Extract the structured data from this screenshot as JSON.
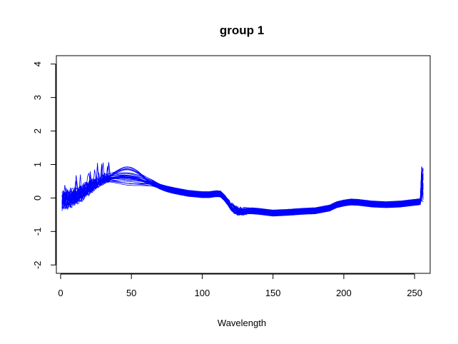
{
  "chart_data": {
    "type": "line",
    "title": "group 1",
    "xlabel": "Wavelength",
    "ylabel": "",
    "xlim": [
      -3,
      261
    ],
    "ylim": [
      -2.25,
      4.25
    ],
    "x_ticks": [
      0,
      50,
      100,
      150,
      200,
      250
    ],
    "y_ticks": [
      -2,
      -1,
      0,
      1,
      2,
      3,
      4
    ],
    "x_tick_labels": [
      "0",
      "50",
      "100",
      "150",
      "200",
      "250"
    ],
    "y_tick_labels": [
      "-2",
      "-1",
      "0",
      "1",
      "2",
      "3",
      "4"
    ],
    "grid": false,
    "legend": "none",
    "line_color": "#0000ff",
    "series_count": 28,
    "x_range": [
      1,
      256
    ],
    "mean_curve": [
      [
        1,
        -0.1
      ],
      [
        5,
        -0.05
      ],
      [
        10,
        0.05
      ],
      [
        15,
        0.15
      ],
      [
        20,
        0.3
      ],
      [
        25,
        0.42
      ],
      [
        30,
        0.52
      ],
      [
        35,
        0.58
      ],
      [
        40,
        0.6
      ],
      [
        45,
        0.6
      ],
      [
        50,
        0.58
      ],
      [
        55,
        0.54
      ],
      [
        60,
        0.48
      ],
      [
        65,
        0.42
      ],
      [
        70,
        0.33
      ],
      [
        75,
        0.27
      ],
      [
        80,
        0.22
      ],
      [
        85,
        0.18
      ],
      [
        90,
        0.14
      ],
      [
        95,
        0.12
      ],
      [
        100,
        0.1
      ],
      [
        105,
        0.1
      ],
      [
        110,
        0.13
      ],
      [
        113,
        0.12
      ],
      [
        116,
        0.0
      ],
      [
        120,
        -0.2
      ],
      [
        125,
        -0.33
      ],
      [
        130,
        -0.36
      ],
      [
        140,
        -0.4
      ],
      [
        150,
        -0.45
      ],
      [
        160,
        -0.43
      ],
      [
        170,
        -0.4
      ],
      [
        180,
        -0.38
      ],
      [
        190,
        -0.3
      ],
      [
        195,
        -0.2
      ],
      [
        200,
        -0.15
      ],
      [
        205,
        -0.12
      ],
      [
        210,
        -0.13
      ],
      [
        220,
        -0.18
      ],
      [
        230,
        -0.2
      ],
      [
        240,
        -0.18
      ],
      [
        250,
        -0.13
      ],
      [
        256,
        -0.1
      ]
    ]
  }
}
